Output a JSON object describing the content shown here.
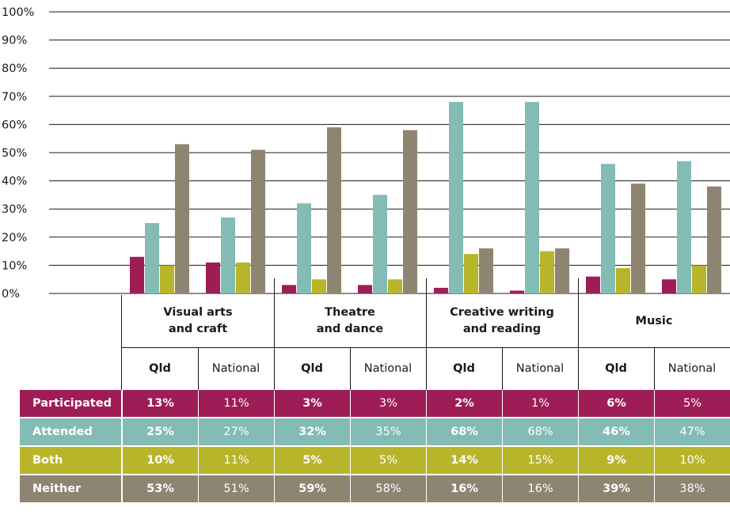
{
  "chart_data": {
    "type": "bar",
    "categories": [
      {
        "label": "Visual arts\nand craft",
        "groups": [
          "Qld",
          "National"
        ]
      },
      {
        "label": "Theatre\nand dance",
        "groups": [
          "Qld",
          "National"
        ]
      },
      {
        "label": "Creative writing\nand reading",
        "groups": [
          "Qld",
          "National"
        ]
      },
      {
        "label": "Music",
        "groups": [
          "Qld",
          "National"
        ]
      }
    ],
    "x": [
      "Visual arts and craft - Qld",
      "Visual arts and craft - National",
      "Theatre and dance - Qld",
      "Theatre and dance - National",
      "Creative writing and reading - Qld",
      "Creative writing and reading - National",
      "Music - Qld",
      "Music - National"
    ],
    "series": [
      {
        "name": "Participated",
        "color": "#9e1d57",
        "values": [
          13,
          11,
          3,
          3,
          2,
          1,
          6,
          5
        ],
        "labels": [
          "13%",
          "11%",
          "3%",
          "3%",
          "2%",
          "1%",
          "6%",
          "5%"
        ]
      },
      {
        "name": "Attended",
        "color": "#83bcb5",
        "values": [
          25,
          27,
          32,
          35,
          68,
          68,
          46,
          47
        ],
        "labels": [
          "25%",
          "27%",
          "32%",
          "35%",
          "68%",
          "68%",
          "46%",
          "47%"
        ]
      },
      {
        "name": "Both",
        "color": "#b8b52a",
        "values": [
          10,
          11,
          5,
          5,
          14,
          15,
          9,
          10
        ],
        "labels": [
          "10%",
          "11%",
          "5%",
          "5%",
          "14%",
          "15%",
          "9%",
          "10%"
        ]
      },
      {
        "name": "Neither",
        "color": "#8e8472",
        "values": [
          53,
          51,
          59,
          58,
          16,
          16,
          39,
          38
        ],
        "labels": [
          "53%",
          "51%",
          "59%",
          "58%",
          "16%",
          "16%",
          "39%",
          "38%"
        ]
      }
    ],
    "ylim": [
      0,
      100
    ],
    "yticks": [
      "0%",
      "10%",
      "20%",
      "30%",
      "40%",
      "50%",
      "60%",
      "70%",
      "80%",
      "90%",
      "100%"
    ],
    "grid": true,
    "legend": "table-below"
  }
}
